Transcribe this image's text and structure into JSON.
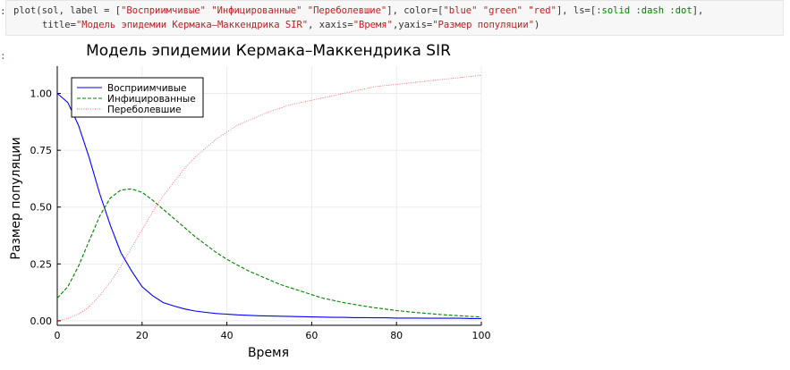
{
  "code": {
    "prompt": ":",
    "line1_pre": "plot(sol, label = [",
    "line1_s1": "\"Восприимчивые\"",
    "line1_sp1": " ",
    "line1_s2": "\"Инфицированные\"",
    "line1_sp2": " ",
    "line1_s3": "\"Переболевшие\"",
    "line1_mid": "], color=[",
    "line1_c1": "\"blue\"",
    "line1_c2": "\"green\"",
    "line1_c3": "\"red\"",
    "line1_mid2": "], ls=[",
    "line1_ls": ":solid :dash :dot",
    "line1_end": "],",
    "line2_pre": "title=",
    "line2_title": "\"Модель эпидемии Кермака–Маккендрика SIR\"",
    "line2_mid": ", xaxis=",
    "line2_x": "\"Время\"",
    "line2_mid2": ",yaxis=",
    "line2_y": "\"Размер популяции\"",
    "line2_end": ")"
  },
  "output_prompt": ":",
  "chart_data": {
    "type": "line",
    "title": "Модель эпидемии Кермака–Маккендрика SIR",
    "xlabel": "Время",
    "ylabel": "Размер популяции",
    "xlim": [
      0,
      100
    ],
    "ylim": [
      -0.02,
      1.12
    ],
    "xticks": [
      0,
      20,
      40,
      60,
      80,
      100
    ],
    "xtick_labels": [
      "0",
      "20",
      "40",
      "60",
      "80",
      "100"
    ],
    "yticks": [
      0,
      0.25,
      0.5,
      0.75,
      1.0
    ],
    "ytick_labels": [
      "0.00",
      "0.25",
      "0.50",
      "0.75",
      "1.00"
    ],
    "grid": true,
    "legend_position": "top-left",
    "x": [
      0,
      2.5,
      5,
      7.5,
      10,
      12.5,
      15,
      17.5,
      20,
      22.5,
      25,
      27.5,
      30,
      32.5,
      35,
      37.5,
      40,
      42.5,
      45,
      47.5,
      50,
      52.5,
      55,
      57.5,
      60,
      62.5,
      65,
      67.5,
      70,
      72.5,
      75,
      77.5,
      80,
      82.5,
      85,
      87.5,
      90,
      92.5,
      95,
      97.5,
      100
    ],
    "series": [
      {
        "name": "Восприимчивые",
        "color": "#0000ff",
        "dash": "solid",
        "values": [
          1.0,
          0.96,
          0.86,
          0.72,
          0.56,
          0.42,
          0.3,
          0.22,
          0.15,
          0.11,
          0.08,
          0.065,
          0.052,
          0.043,
          0.037,
          0.032,
          0.029,
          0.026,
          0.024,
          0.022,
          0.021,
          0.02,
          0.019,
          0.018,
          0.017,
          0.016,
          0.015,
          0.015,
          0.014,
          0.014,
          0.013,
          0.013,
          0.012,
          0.012,
          0.012,
          0.011,
          0.011,
          0.011,
          0.011,
          0.01,
          0.01
        ]
      },
      {
        "name": "Инфицированные",
        "color": "#008000",
        "dash": "dash",
        "values": [
          0.1,
          0.15,
          0.24,
          0.35,
          0.46,
          0.54,
          0.575,
          0.58,
          0.565,
          0.53,
          0.49,
          0.45,
          0.41,
          0.37,
          0.335,
          0.3,
          0.27,
          0.245,
          0.22,
          0.2,
          0.18,
          0.16,
          0.145,
          0.13,
          0.115,
          0.1,
          0.09,
          0.08,
          0.072,
          0.064,
          0.057,
          0.051,
          0.045,
          0.04,
          0.036,
          0.032,
          0.028,
          0.025,
          0.022,
          0.019,
          0.017
        ]
      },
      {
        "name": "Переболевшие",
        "color": "#ff0000",
        "dash": "dot",
        "values": [
          0.0,
          0.01,
          0.03,
          0.06,
          0.11,
          0.17,
          0.24,
          0.32,
          0.4,
          0.48,
          0.55,
          0.61,
          0.67,
          0.72,
          0.76,
          0.8,
          0.83,
          0.86,
          0.88,
          0.9,
          0.92,
          0.935,
          0.95,
          0.96,
          0.97,
          0.98,
          0.99,
          1.0,
          1.01,
          1.02,
          1.03,
          1.035,
          1.04,
          1.045,
          1.05,
          1.055,
          1.06,
          1.065,
          1.07,
          1.075,
          1.08
        ]
      }
    ]
  }
}
